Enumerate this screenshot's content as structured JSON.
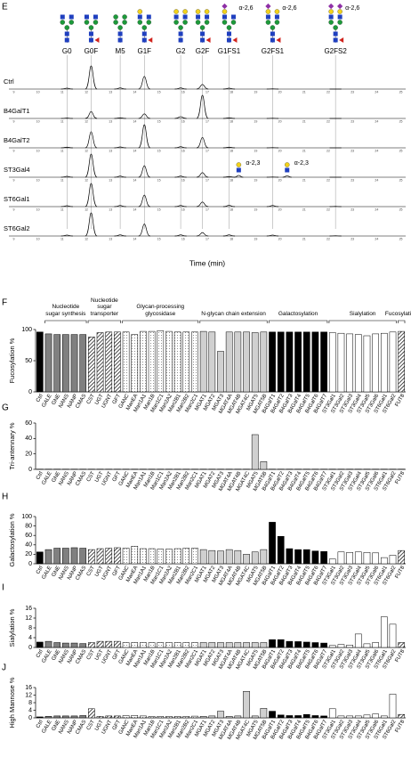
{
  "chart_data": [
    {
      "type": "chromatogram",
      "panel": "E",
      "xlabel": "Time (min)",
      "xlim": [
        8.8,
        25.2
      ],
      "xticks": [
        9,
        10,
        11,
        12,
        13,
        14,
        15,
        16,
        17,
        18,
        19,
        20,
        21,
        22,
        23,
        24,
        25
      ],
      "peaks": [
        {
          "label": "G0",
          "time": 11.2
        },
        {
          "label": "G0F",
          "time": 12.2
        },
        {
          "label": "M5",
          "time": 13.4
        },
        {
          "label": "G1F",
          "time": 14.4
        },
        {
          "label": "G2",
          "time": 15.9
        },
        {
          "label": "G2F",
          "time": 16.8
        },
        {
          "label": "G1FS1",
          "time": 17.9,
          "annotation": "α-2,6"
        },
        {
          "label": "G2FS1",
          "time": 19.7,
          "annotation": "α-2,6"
        },
        {
          "label": "G2FS2",
          "time": 22.3,
          "annotation": "α-2,6"
        }
      ],
      "traces": [
        {
          "name": "Ctrl",
          "heights": [
            4,
            100,
            5,
            55,
            5,
            20,
            4,
            1,
            0
          ]
        },
        {
          "name": "B4GalT1",
          "heights": [
            2,
            30,
            3,
            20,
            8,
            100,
            3,
            1,
            0
          ]
        },
        {
          "name": "B4GalT2",
          "heights": [
            3,
            70,
            4,
            100,
            5,
            45,
            3,
            1,
            0
          ]
        },
        {
          "name": "ST3Gal4",
          "heights": [
            4,
            100,
            5,
            50,
            5,
            20,
            3,
            1,
            0
          ],
          "annotations": [
            {
              "text": "α-2,3",
              "time": 18.3,
              "height": 8
            },
            {
              "text": "α-2,3",
              "time": 20.3,
              "height": 6
            }
          ]
        },
        {
          "name": "ST6Gal1",
          "heights": [
            4,
            100,
            5,
            50,
            5,
            20,
            6,
            5,
            1
          ]
        },
        {
          "name": "ST6Gal2",
          "heights": [
            4,
            100,
            5,
            52,
            5,
            15,
            5,
            4,
            1
          ]
        }
      ]
    },
    {
      "type": "bar",
      "panel": "F",
      "ylabel": "Fucosylation %",
      "ylim": [
        0,
        100
      ],
      "yticks": [
        0,
        50,
        100
      ],
      "groups": [
        {
          "categories": [
            "Ctrl"
          ],
          "color": "#000000"
        },
        {
          "label": "Nucleotide sugar synthesis",
          "categories": [
            "GALE",
            "GNE",
            "NANS",
            "NANP",
            "CMAS"
          ],
          "color": "#808080"
        },
        {
          "label": "Nucleotide sugar transporter",
          "categories": [
            "CST",
            "UGT",
            "UGNT",
            "GFT"
          ],
          "color": "#ffffff",
          "pattern": "hatch"
        },
        {
          "label": "Glycan-processing glycosidase",
          "categories": [
            "GANC",
            "ManEA",
            "Man1A1",
            "Man1B",
            "Man1C1",
            "Man2A2",
            "Man2B1",
            "Man2B2",
            "Man2C1"
          ],
          "color": "#ffffff",
          "pattern": "dots"
        },
        {
          "label": "N-glycan chain extension",
          "categories": [
            "MGAT1",
            "MGAT2",
            "MGAT3",
            "MGAT4A",
            "MGAT4B",
            "MGAT4C",
            "MGAT5",
            "MGAT5B"
          ],
          "color": "#d0d0d0"
        },
        {
          "label": "Galactosylation",
          "categories": [
            "B4GalT1",
            "B4GalT2",
            "B4GalT3",
            "B4GalT4",
            "B4GalT5",
            "B4GalT6",
            "B4GalT7"
          ],
          "color": "#000000"
        },
        {
          "label": "Sialylation",
          "categories": [
            "ST3Gal1",
            "ST3Gal2",
            "ST3Gal3",
            "ST3Gal4",
            "ST3Gal5",
            "ST3Gal6",
            "ST6Gal1",
            "ST6Gal2"
          ],
          "color": "#ffffff"
        },
        {
          "label": "Fucosylation",
          "categories": [
            "FUT8"
          ],
          "color": "#ffffff",
          "pattern": "hatch"
        }
      ],
      "values": [
        96,
        93,
        92,
        92,
        92,
        92,
        88,
        95,
        96,
        96,
        96,
        92,
        97,
        97,
        98,
        97,
        96,
        96,
        96,
        97,
        96,
        65,
        96,
        96,
        96,
        95,
        96,
        96,
        96,
        96,
        96,
        96,
        96,
        96,
        95,
        94,
        93,
        92,
        90,
        93,
        94,
        96,
        97
      ]
    },
    {
      "type": "bar",
      "panel": "G",
      "ylabel": "Tri-antennary %",
      "ylim": [
        0,
        60
      ],
      "yticks": [
        0,
        20,
        40,
        60
      ],
      "values": [
        0.3,
        0.3,
        0.3,
        0.3,
        0.3,
        0.3,
        0.3,
        0.3,
        0.3,
        0.3,
        0.3,
        0.3,
        0.3,
        0.3,
        0.3,
        0.3,
        0.3,
        0.3,
        0.3,
        0.3,
        0.3,
        0.3,
        0.3,
        0.3,
        0.3,
        45,
        10,
        0.3,
        0.3,
        0.3,
        0.3,
        0.3,
        0.3,
        0.3,
        0.3,
        0.3,
        0.3,
        0.3,
        0.3,
        0.3,
        0.3,
        0.3,
        0.3
      ]
    },
    {
      "type": "bar",
      "panel": "H",
      "ylabel": "Galactosylation %",
      "ylim": [
        0,
        100
      ],
      "yticks": [
        0,
        20,
        40,
        60,
        80,
        100
      ],
      "values": [
        25,
        30,
        33,
        33,
        34,
        33,
        30,
        32,
        33,
        34,
        33,
        37,
        32,
        32,
        31,
        31,
        32,
        33,
        33,
        30,
        28,
        27,
        30,
        28,
        20,
        25,
        30,
        88,
        58,
        32,
        30,
        30,
        27,
        26,
        10,
        25,
        24,
        25,
        24,
        23,
        13,
        18,
        28
      ]
    },
    {
      "type": "bar",
      "panel": "I",
      "ylabel": "Sialylation %",
      "ylim": [
        0,
        16
      ],
      "yticks": [
        0,
        4,
        8,
        12,
        16
      ],
      "values": [
        2.2,
        2.5,
        2,
        1.8,
        1.8,
        1.6,
        2,
        2.5,
        2.5,
        2.5,
        2,
        2,
        2,
        2,
        2,
        2,
        2,
        2,
        2,
        2,
        2,
        2,
        2,
        2,
        2,
        2,
        2,
        3.2,
        3.2,
        2.5,
        2.4,
        2.2,
        2,
        1.8,
        0.8,
        1.2,
        1,
        5.5,
        1.5,
        2,
        12.5,
        9.5,
        2
      ]
    },
    {
      "type": "bar",
      "panel": "J",
      "ylabel": "High Mannose %",
      "ylim": [
        0,
        16
      ],
      "yticks": [
        0,
        4,
        8,
        12,
        16
      ],
      "values": [
        0.5,
        0.8,
        1,
        1,
        1,
        1.2,
        4.8,
        0.8,
        1,
        1,
        1.2,
        1.3,
        1,
        0.8,
        0.8,
        0.8,
        0.8,
        0.8,
        0.9,
        0.8,
        1,
        3.5,
        0.8,
        1,
        14,
        1,
        5,
        3.5,
        1.5,
        1.2,
        1.2,
        1.8,
        1.2,
        1,
        4.8,
        1,
        1,
        1,
        1.5,
        2,
        1,
        12.5,
        1.8
      ]
    }
  ]
}
